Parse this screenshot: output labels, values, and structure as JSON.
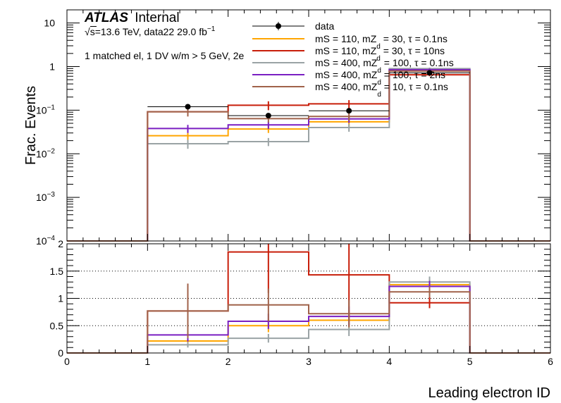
{
  "chart_data": [
    {
      "type": "histogram-step",
      "panel": "main",
      "ylabel": "Frac. Events",
      "yscale": "log",
      "ylim": [
        0.0001,
        20
      ],
      "xlim": [
        0,
        6
      ],
      "bins": [
        [
          0,
          1
        ],
        [
          1,
          2
        ],
        [
          2,
          3
        ],
        [
          3,
          4
        ],
        [
          4,
          5
        ],
        [
          5,
          6
        ]
      ],
      "y_ticks": [
        {
          "v": 0.001,
          "base": "10",
          "exp": "−3"
        },
        {
          "v": 0.01,
          "base": "10",
          "exp": "−2"
        },
        {
          "v": 0.1,
          "base": "10",
          "exp": "−1"
        },
        {
          "v": 1,
          "base": "1",
          "exp": ""
        },
        {
          "v": 10,
          "base": "10",
          "exp": ""
        }
      ],
      "y_partial_tick": {
        "v": 0.0001,
        "base": "10",
        "exp": "−4"
      },
      "series": [
        {
          "name": "mS = 110, mZd = 30, tau = 0.1ns",
          "color": "#ffa500",
          "values": [
            0,
            0.026,
            0.037,
            0.054,
            0.8,
            0
          ],
          "errors": [
            0,
            0.006,
            0.007,
            0.012,
            0.05,
            0
          ]
        },
        {
          "name": "mS = 110, mZd = 30, tau = 10ns",
          "color": "#c81e0a",
          "values": [
            0,
            0.092,
            0.13,
            0.14,
            0.65,
            0
          ],
          "errors": [
            0,
            0.02,
            0.03,
            0.03,
            0.05,
            0
          ]
        },
        {
          "name": "mS = 400, mZd = 100, tau = 0.1ns",
          "color": "#9aa3a5",
          "values": [
            0,
            0.017,
            0.019,
            0.04,
            0.9,
            0
          ],
          "errors": [
            0,
            0.004,
            0.004,
            0.008,
            0.05,
            0
          ]
        },
        {
          "name": "mS = 400, mZd = 100, tau = 2ns",
          "color": "#7a1fc2",
          "values": [
            0,
            0.038,
            0.046,
            0.063,
            0.85,
            0
          ],
          "errors": [
            0,
            0.008,
            0.009,
            0.012,
            0.05,
            0
          ]
        },
        {
          "name": "mS = 400, mZd = 10, tau = 0.1ns",
          "color": "#a0624a",
          "values": [
            0,
            0.092,
            0.064,
            0.072,
            0.79,
            0
          ],
          "errors": [
            0,
            0.02,
            0.012,
            0.014,
            0.05,
            0
          ]
        }
      ],
      "data_points": {
        "x": [
          1.5,
          2.5,
          3.5,
          4.5
        ],
        "y": [
          0.12,
          0.075,
          0.097,
          0.72
        ]
      }
    },
    {
      "type": "histogram-step",
      "panel": "ratio",
      "xlabel": "Leading electron ID",
      "ylim": [
        0,
        2
      ],
      "xlim": [
        0,
        6
      ],
      "x_ticks": [
        "0",
        "1",
        "2",
        "3",
        "4",
        "5",
        "6"
      ],
      "y_ticks": [
        "0",
        "0.5",
        "1",
        "1.5",
        "2"
      ],
      "grid": "horizontal-dotted",
      "series": [
        {
          "name": "mS = 110, mZd = 30, tau = 0.1ns",
          "color": "#ffa500",
          "values": [
            0,
            0.22,
            0.5,
            0.6,
            1.25,
            0
          ],
          "errors": [
            0,
            0.08,
            0.12,
            0.18,
            0.1,
            0
          ]
        },
        {
          "name": "mS = 110, mZd = 30, tau = 10ns",
          "color": "#c81e0a",
          "values": [
            0,
            0.77,
            1.85,
            1.43,
            0.92,
            0
          ],
          "errors": [
            0,
            0.5,
            0.75,
            0.75,
            0.1,
            0
          ]
        },
        {
          "name": "mS = 400, mZd = 100, tau = 0.1ns",
          "color": "#9aa3a5",
          "values": [
            0,
            0.15,
            0.27,
            0.43,
            1.3,
            0
          ],
          "errors": [
            0,
            0.05,
            0.08,
            0.12,
            0.1,
            0
          ]
        },
        {
          "name": "mS = 400, mZd = 100, tau = 2ns",
          "color": "#7a1fc2",
          "values": [
            0,
            0.33,
            0.58,
            0.67,
            1.22,
            0
          ],
          "errors": [
            0,
            0.12,
            0.14,
            0.18,
            0.1,
            0
          ]
        },
        {
          "name": "mS = 400, mZd = 10, tau = 0.1ns",
          "color": "#a0624a",
          "values": [
            0,
            0.77,
            0.88,
            0.72,
            1.12,
            0
          ],
          "errors": [
            0,
            0.5,
            0.3,
            0.25,
            0.1,
            0
          ]
        }
      ]
    }
  ],
  "annotations": {
    "atlas": "ATLAS",
    "internal": "Internal",
    "sqrt": "√",
    "energy": "s=13.6 TeV, data22 29.0 fb",
    "energy_sup": "−1",
    "selection": "1 matched el, 1 DV w/m > 5 GeV, 2e"
  },
  "legend": {
    "data_label": "data",
    "entries": [
      {
        "a": "mS = 110, mZ",
        "sub": "d",
        "b": " = 30, τ = 0.1ns",
        "color": "#ffa500"
      },
      {
        "a": "mS = 110, mZ",
        "sub": "d",
        "b": " = 30, τ = 10ns",
        "color": "#c81e0a"
      },
      {
        "a": "mS = 400, mZ",
        "sub": "d",
        "b": " = 100, τ = 0.1ns",
        "color": "#9aa3a5"
      },
      {
        "a": "mS = 400, mZ",
        "sub": "d",
        "b": " = 100, τ = 2ns",
        "color": "#7a1fc2"
      },
      {
        "a": "mS = 400, mZ",
        "sub": "d",
        "b": " = 10, τ = 0.1ns",
        "color": "#a0624a"
      }
    ]
  },
  "colors": {
    "data": "#000000",
    "frame": "#000000",
    "grid": "#000000"
  }
}
